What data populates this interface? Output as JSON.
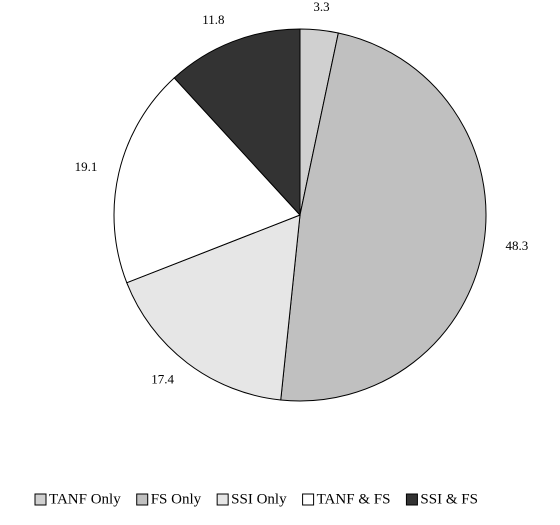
{
  "chart_data": {
    "type": "pie",
    "categories": [
      "TANF Only",
      "FS Only",
      "SSI Only",
      "TANF & FS",
      "SSI & FS"
    ],
    "values": [
      3.3,
      48.3,
      17.4,
      19.1,
      11.8
    ],
    "colors": [
      "#d0d0d0",
      "#c0c0c0",
      "#e6e6e6",
      "#ffffff",
      "#333333"
    ],
    "legend": "bottom"
  }
}
